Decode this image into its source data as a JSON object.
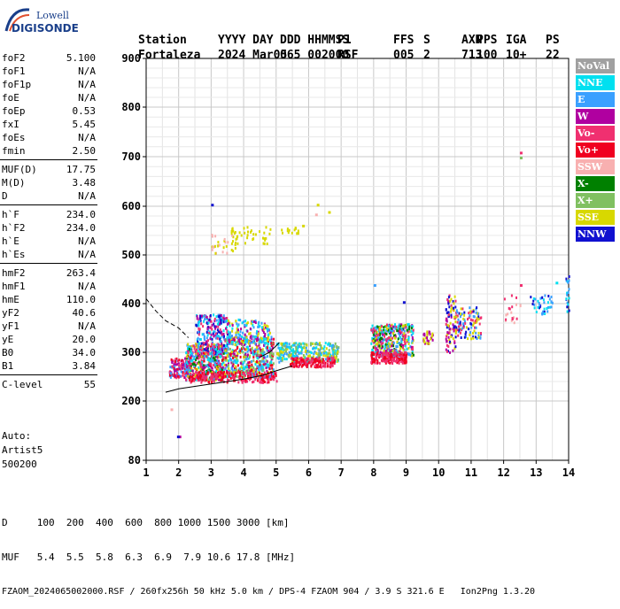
{
  "logo": {
    "line1": "Lowell",
    "line2": "DIGISONDE"
  },
  "header": {
    "labels": [
      "Station",
      "YYYY DAY",
      "DDD HHMMSS",
      "P1",
      "FFS",
      "S",
      "AXN",
      "PPS",
      "IGA",
      "PS"
    ],
    "values": [
      "Fortaleza",
      "2024 Mar05",
      "065 002000",
      "RSF",
      "005",
      "2",
      "713",
      "100",
      "10+",
      "22"
    ]
  },
  "params": [
    [
      {
        "k": "foF2",
        "v": "5.100"
      },
      {
        "k": "foF1",
        "v": "N/A"
      },
      {
        "k": "foF1p",
        "v": "N/A"
      },
      {
        "k": "foE",
        "v": "N/A"
      },
      {
        "k": "foEp",
        "v": "0.53"
      },
      {
        "k": "fxI",
        "v": "5.45"
      },
      {
        "k": "foEs",
        "v": "N/A"
      },
      {
        "k": "fmin",
        "v": "2.50"
      }
    ],
    [
      {
        "k": "MUF(D)",
        "v": "17.75"
      },
      {
        "k": "M(D)",
        "v": "3.48"
      },
      {
        "k": "D",
        "v": "N/A"
      }
    ],
    [
      {
        "k": "h`F",
        "v": "234.0"
      },
      {
        "k": "h`F2",
        "v": "234.0"
      },
      {
        "k": "h`E",
        "v": "N/A"
      },
      {
        "k": "h`Es",
        "v": "N/A"
      }
    ],
    [
      {
        "k": "hmF2",
        "v": "263.4"
      },
      {
        "k": "hmF1",
        "v": "N/A"
      },
      {
        "k": "hmE",
        "v": "110.0"
      },
      {
        "k": "yF2",
        "v": "40.6"
      },
      {
        "k": "yF1",
        "v": "N/A"
      },
      {
        "k": "yE",
        "v": "20.0"
      },
      {
        "k": "B0",
        "v": "34.0"
      },
      {
        "k": "B1",
        "v": "3.84"
      }
    ],
    [
      {
        "k": "C-level",
        "v": "55"
      }
    ]
  ],
  "auto": {
    "line1": "Auto:",
    "line2": "Artist5",
    "line3": "500200"
  },
  "legend": [
    {
      "label": "NoVal",
      "color": "#a0a0a0",
      "text": "#ffffff"
    },
    {
      "label": "NNE",
      "color": "#00e0f0",
      "text": "#ffffff"
    },
    {
      "label": "E",
      "color": "#3aa0ff",
      "text": "#ffffff"
    },
    {
      "label": "W",
      "color": "#b000a0",
      "text": "#ffffff"
    },
    {
      "label": "Vo-",
      "color": "#f03070",
      "text": "#ffffff"
    },
    {
      "label": "Vo+",
      "color": "#f00020",
      "text": "#ffffff"
    },
    {
      "label": "SSW",
      "color": "#f8b0b0",
      "text": "#ffffff"
    },
    {
      "label": "X-",
      "color": "#008000",
      "text": "#ffffff"
    },
    {
      "label": "X+",
      "color": "#80c060",
      "text": "#ffffff"
    },
    {
      "label": "SSE",
      "color": "#d8d800",
      "text": "#ffffff"
    },
    {
      "label": "NNW",
      "color": "#1010d0",
      "text": "#ffffff"
    }
  ],
  "footer": {
    "d_row": "D     100  200  400  600  800 1000 1500 3000 [km]",
    "muf_row": "MUF   5.4  5.5  5.8  6.3  6.9  7.9 10.6 17.8 [MHz]",
    "info": "FZAOM_2024065002000.RSF / 260fx256h 50 kHz 5.0 km / DPS-4 FZAOM 904 / 3.9 S 321.6 E   Ion2Png 1.3.20"
  },
  "chart_data": {
    "type": "scatter",
    "x_ticks": [
      "1",
      "2",
      "3",
      "4",
      "5",
      "6",
      "7",
      "8",
      "9",
      "10",
      "11",
      "12",
      "13",
      "14"
    ],
    "y_ticks": [
      "80",
      "200",
      "300",
      "400",
      "500",
      "600",
      "700",
      "800",
      "900"
    ],
    "xlim": [
      1,
      14
    ],
    "y_axis_values": [
      80,
      200,
      300,
      400,
      500,
      600,
      700,
      800,
      900
    ],
    "grid": true,
    "legend_position": "right",
    "trace_clusters": [
      {
        "x": [
          1.7,
          2.3
        ],
        "y": [
          250,
          290
        ],
        "n": 140,
        "mix": [
          "#f00020",
          "#b000a0",
          "#f03070",
          "#3aa0ff"
        ]
      },
      {
        "x": [
          2.2,
          3.4
        ],
        "y": [
          245,
          320
        ],
        "n": 520,
        "mix": [
          "#b000a0",
          "#f03070",
          "#00e0f0",
          "#3aa0ff",
          "#f00020",
          "#d8d800",
          "#008000"
        ]
      },
      {
        "x": [
          2.5,
          3.5
        ],
        "y": [
          300,
          380
        ],
        "n": 240,
        "mix": [
          "#b000a0",
          "#f03070",
          "#3aa0ff",
          "#00e0f0",
          "#1010d0"
        ]
      },
      {
        "x": [
          3.4,
          4.9
        ],
        "y": [
          250,
          335
        ],
        "n": 520,
        "mix": [
          "#00e0f0",
          "#3aa0ff",
          "#d8d800",
          "#b000a0",
          "#f00020",
          "#80c060"
        ]
      },
      {
        "x": [
          3.5,
          4.8
        ],
        "y": [
          320,
          370
        ],
        "n": 140,
        "mix": [
          "#b000a0",
          "#3aa0ff",
          "#d8d800",
          "#00e0f0"
        ]
      },
      {
        "x": [
          2.3,
          5.0
        ],
        "y": [
          240,
          262
        ],
        "n": 200,
        "mix": [
          "#f00020",
          "#f03070"
        ]
      },
      {
        "x": [
          5.0,
          6.9
        ],
        "y": [
          282,
          322
        ],
        "n": 320,
        "mix": [
          "#00e0f0",
          "#d8d800",
          "#3aa0ff",
          "#80c060"
        ]
      },
      {
        "x": [
          5.4,
          6.8
        ],
        "y": [
          272,
          292
        ],
        "n": 160,
        "mix": [
          "#f00020",
          "#f03070"
        ]
      },
      {
        "x": [
          7.9,
          9.2
        ],
        "y": [
          295,
          360
        ],
        "n": 420,
        "mix": [
          "#b000a0",
          "#d8d800",
          "#3aa0ff",
          "#00e0f0",
          "#f03070",
          "#008000"
        ]
      },
      {
        "x": [
          7.9,
          9.0
        ],
        "y": [
          280,
          302
        ],
        "n": 170,
        "mix": [
          "#f00020",
          "#f03070"
        ]
      },
      {
        "x": [
          9.5,
          9.8
        ],
        "y": [
          320,
          345
        ],
        "n": 30,
        "mix": [
          "#b000a0",
          "#d8d800"
        ]
      },
      {
        "x": [
          10.2,
          10.5
        ],
        "y": [
          300,
          420
        ],
        "n": 90,
        "mix": [
          "#f03070",
          "#d8d800",
          "#b000a0",
          "#1010d0"
        ]
      },
      {
        "x": [
          10.5,
          11.3
        ],
        "y": [
          330,
          395
        ],
        "n": 110,
        "mix": [
          "#d8d800",
          "#1010d0",
          "#3aa0ff",
          "#f03070"
        ]
      },
      {
        "x": [
          12.0,
          12.5
        ],
        "y": [
          360,
          420
        ],
        "n": 20,
        "mix": [
          "#f8b0b0",
          "#f03070"
        ]
      },
      {
        "x": [
          12.8,
          13.5
        ],
        "y": [
          380,
          420
        ],
        "n": 40,
        "mix": [
          "#1010d0",
          "#00e0f0",
          "#3aa0ff"
        ]
      },
      {
        "x": [
          13.9,
          14.0
        ],
        "y": [
          380,
          460
        ],
        "n": 20,
        "mix": [
          "#1010d0",
          "#3aa0ff",
          "#00e0f0"
        ]
      },
      {
        "x": [
          3.0,
          3.8
        ],
        "y": [
          505,
          545
        ],
        "n": 30,
        "mix": [
          "#d8d800",
          "#f8b0b0"
        ]
      },
      {
        "x": [
          3.5,
          4.8
        ],
        "y": [
          525,
          560
        ],
        "n": 40,
        "mix": [
          "#d8d800"
        ]
      },
      {
        "x": [
          5.1,
          5.7
        ],
        "y": [
          545,
          560
        ],
        "n": 15,
        "mix": [
          "#d8d800"
        ]
      }
    ],
    "points": [
      {
        "x": 2.0,
        "y": 130,
        "color": "#b000a0"
      },
      {
        "x": 1.95,
        "y": 130,
        "color": "#1010d0"
      },
      {
        "x": 1.75,
        "y": 185,
        "color": "#f8b0b0"
      },
      {
        "x": 12.5,
        "y": 710,
        "color": "#f03070"
      },
      {
        "x": 12.5,
        "y": 700,
        "color": "#80c060"
      },
      {
        "x": 3.0,
        "y": 605,
        "color": "#1010d0"
      },
      {
        "x": 6.25,
        "y": 605,
        "color": "#d8d800"
      },
      {
        "x": 6.6,
        "y": 590,
        "color": "#d8d800"
      },
      {
        "x": 6.2,
        "y": 585,
        "color": "#f8b0b0"
      },
      {
        "x": 5.8,
        "y": 562,
        "color": "#d8d800"
      },
      {
        "x": 8.0,
        "y": 440,
        "color": "#3aa0ff"
      },
      {
        "x": 8.9,
        "y": 405,
        "color": "#1010d0"
      },
      {
        "x": 12.5,
        "y": 440,
        "color": "#f03070"
      },
      {
        "x": 13.6,
        "y": 445,
        "color": "#00e0f0"
      }
    ],
    "model_curves": [
      {
        "name": "",
        "points": [
          [
            1.0,
            410
          ],
          [
            1.3,
            385
          ],
          [
            1.6,
            365
          ],
          [
            2.0,
            350
          ],
          [
            2.3,
            330
          ]
        ],
        "dashed": true
      },
      {
        "name": "",
        "points": [
          [
            1.6,
            218
          ],
          [
            2.0,
            225
          ],
          [
            3.0,
            235
          ],
          [
            4.0,
            245
          ],
          [
            4.6,
            253
          ],
          [
            5.0,
            262
          ],
          [
            5.5,
            272
          ]
        ],
        "dashed": false
      },
      {
        "name": "",
        "points": [
          [
            4.5,
            290
          ],
          [
            4.8,
            300
          ],
          [
            5.1,
            320
          ]
        ],
        "dashed": false
      }
    ]
  }
}
